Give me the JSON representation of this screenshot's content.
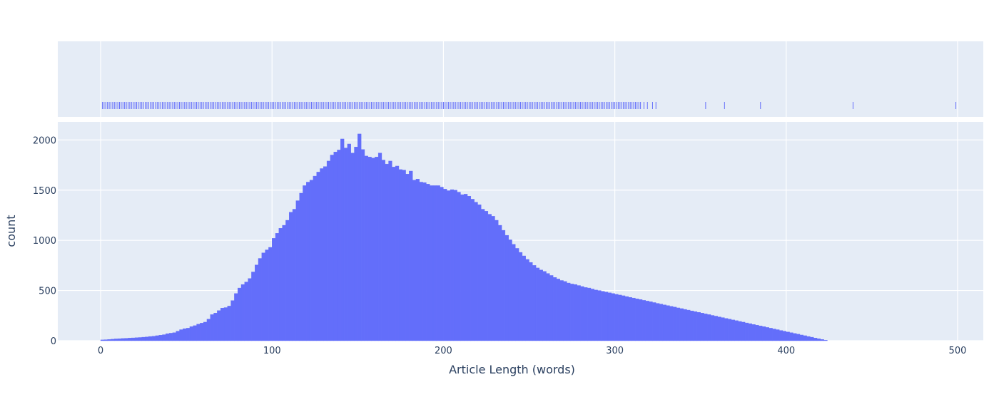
{
  "chart_data": {
    "type": "histogram",
    "xlabel": "Article Length (words)",
    "ylabel": "count",
    "x_ticks": [
      "0",
      "100",
      "200",
      "300",
      "400",
      "500"
    ],
    "y_ticks": [
      "0",
      "500",
      "1000",
      "1500",
      "2000"
    ],
    "xlim": [
      -25,
      515
    ],
    "ylim": [
      0,
      2180
    ],
    "grid": true,
    "bin_width": 2,
    "bin_start": 0,
    "counts": [
      8,
      10,
      12,
      15,
      18,
      20,
      22,
      24,
      26,
      28,
      30,
      32,
      35,
      38,
      42,
      45,
      50,
      55,
      60,
      70,
      75,
      80,
      95,
      110,
      120,
      125,
      140,
      150,
      165,
      175,
      185,
      215,
      260,
      275,
      300,
      325,
      330,
      345,
      400,
      470,
      525,
      560,
      585,
      620,
      685,
      755,
      820,
      875,
      905,
      930,
      1020,
      1070,
      1120,
      1150,
      1200,
      1280,
      1310,
      1395,
      1470,
      1545,
      1580,
      1600,
      1640,
      1680,
      1715,
      1735,
      1790,
      1850,
      1880,
      1900,
      2010,
      1920,
      1960,
      1870,
      1930,
      2060,
      1905,
      1840,
      1830,
      1820,
      1830,
      1870,
      1800,
      1760,
      1790,
      1730,
      1740,
      1705,
      1700,
      1660,
      1690,
      1600,
      1610,
      1580,
      1575,
      1560,
      1545,
      1545,
      1545,
      1530,
      1510,
      1495,
      1505,
      1500,
      1480,
      1455,
      1460,
      1440,
      1410,
      1380,
      1355,
      1310,
      1290,
      1260,
      1240,
      1200,
      1150,
      1100,
      1050,
      1005,
      960,
      920,
      880,
      845,
      810,
      780,
      750,
      725,
      705,
      690,
      670,
      650,
      630,
      615,
      600,
      590,
      575,
      565,
      560,
      550,
      540,
      530,
      525,
      515,
      505,
      500,
      492,
      484,
      477,
      470,
      462,
      455,
      448,
      440,
      432,
      425,
      417,
      410,
      402,
      395,
      388,
      380,
      372,
      365,
      357,
      350,
      342,
      335,
      327,
      320,
      312,
      305,
      297,
      290,
      282,
      275,
      267,
      260,
      252,
      245,
      237,
      230,
      222,
      215,
      207,
      200,
      192,
      185,
      177,
      170,
      162,
      155,
      147,
      140,
      132,
      125,
      117,
      110,
      102,
      95,
      87,
      80,
      72,
      65,
      57,
      50,
      42,
      35,
      27,
      20,
      12,
      5
    ],
    "rug_min": 1,
    "rug_dense_max": 315,
    "rug_outliers": [
      317,
      319,
      322,
      324,
      353,
      364,
      385,
      439,
      499
    ],
    "colors": {
      "bar": "#636efa",
      "plot_bg": "#e5ecf6",
      "grid": "#ffffff",
      "text": "#2a3f5f"
    }
  }
}
